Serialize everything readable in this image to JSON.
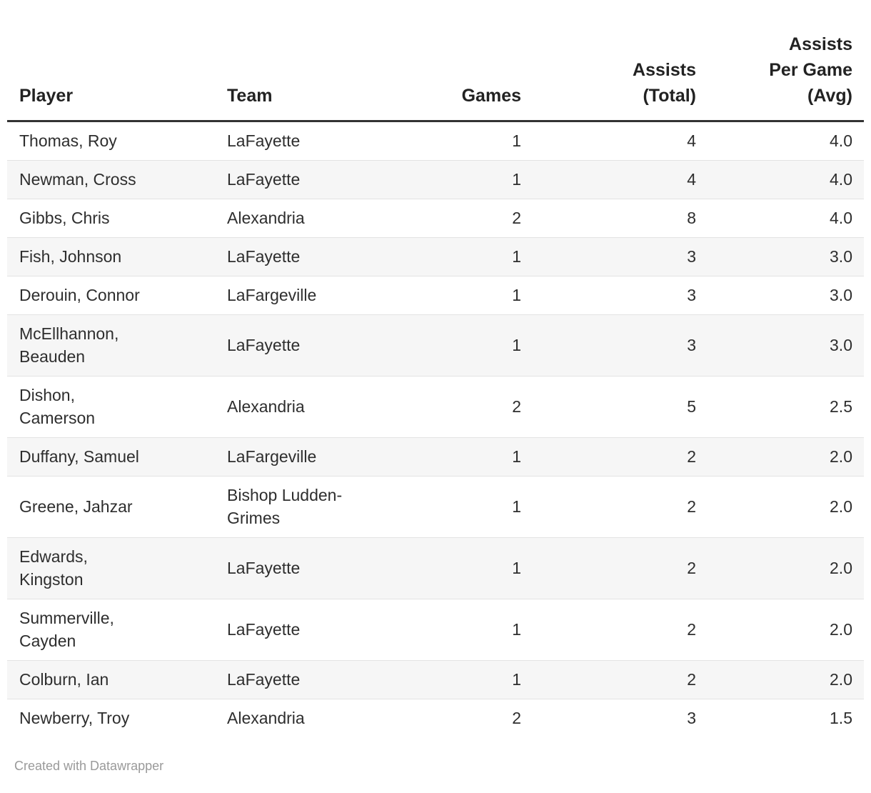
{
  "table": {
    "columns": [
      {
        "key": "player",
        "label": "Player",
        "align": "left"
      },
      {
        "key": "team",
        "label": "Team",
        "align": "left"
      },
      {
        "key": "games",
        "label": "Games",
        "align": "right"
      },
      {
        "key": "assists_total",
        "label": "Assists\n(Total)",
        "align": "right"
      },
      {
        "key": "assists_per_game",
        "label": "Assists\nPer Game\n(Avg)",
        "align": "right"
      }
    ],
    "rows": [
      {
        "player": "Thomas, Roy",
        "team": "LaFayette",
        "games": "1",
        "assists_total": "4",
        "assists_per_game": "4.0"
      },
      {
        "player": "Newman, Cross",
        "team": "LaFayette",
        "games": "1",
        "assists_total": "4",
        "assists_per_game": "4.0"
      },
      {
        "player": "Gibbs, Chris",
        "team": "Alexandria",
        "games": "2",
        "assists_total": "8",
        "assists_per_game": "4.0"
      },
      {
        "player": "Fish, Johnson",
        "team": "LaFayette",
        "games": "1",
        "assists_total": "3",
        "assists_per_game": "3.0"
      },
      {
        "player": "Derouin, Connor",
        "team": "LaFargeville",
        "games": "1",
        "assists_total": "3",
        "assists_per_game": "3.0"
      },
      {
        "player": "McEllhannon,\nBeauden",
        "team": "LaFayette",
        "games": "1",
        "assists_total": "3",
        "assists_per_game": "3.0"
      },
      {
        "player": "Dishon,\nCamerson",
        "team": "Alexandria",
        "games": "2",
        "assists_total": "5",
        "assists_per_game": "2.5"
      },
      {
        "player": "Duffany, Samuel",
        "team": "LaFargeville",
        "games": "1",
        "assists_total": "2",
        "assists_per_game": "2.0"
      },
      {
        "player": "Greene, Jahzar",
        "team": "Bishop Ludden-\nGrimes",
        "games": "1",
        "assists_total": "2",
        "assists_per_game": "2.0"
      },
      {
        "player": "Edwards,\nKingston",
        "team": "LaFayette",
        "games": "1",
        "assists_total": "2",
        "assists_per_game": "2.0"
      },
      {
        "player": "Summerville,\nCayden",
        "team": "LaFayette",
        "games": "1",
        "assists_total": "2",
        "assists_per_game": "2.0"
      },
      {
        "player": "Colburn, Ian",
        "team": "LaFayette",
        "games": "1",
        "assists_total": "2",
        "assists_per_game": "2.0"
      },
      {
        "player": "Newberry, Troy",
        "team": "Alexandria",
        "games": "2",
        "assists_total": "3",
        "assists_per_game": "1.5"
      }
    ]
  },
  "footer": {
    "credit": "Created with Datawrapper"
  },
  "colors": {
    "header_text": "#222222",
    "header_border": "#333333",
    "body_text": "#2e2e2e",
    "row_divider": "#e3e3e3",
    "zebra_stripe": "#f6f6f6",
    "footer_text": "#9a9a9a"
  },
  "chart_data": {
    "type": "table",
    "columns": [
      "Player",
      "Team",
      "Games",
      "Assists (Total)",
      "Assists Per Game (Avg)"
    ],
    "rows": [
      [
        "Thomas, Roy",
        "LaFayette",
        1,
        4,
        4.0
      ],
      [
        "Newman, Cross",
        "LaFayette",
        1,
        4,
        4.0
      ],
      [
        "Gibbs, Chris",
        "Alexandria",
        2,
        8,
        4.0
      ],
      [
        "Fish, Johnson",
        "LaFayette",
        1,
        3,
        3.0
      ],
      [
        "Derouin, Connor",
        "LaFargeville",
        1,
        3,
        3.0
      ],
      [
        "McEllhannon, Beauden",
        "LaFayette",
        1,
        3,
        3.0
      ],
      [
        "Dishon, Camerson",
        "Alexandria",
        2,
        5,
        2.5
      ],
      [
        "Duffany, Samuel",
        "LaFargeville",
        1,
        2,
        2.0
      ],
      [
        "Greene, Jahzar",
        "Bishop Ludden-Grimes",
        1,
        2,
        2.0
      ],
      [
        "Edwards, Kingston",
        "LaFayette",
        1,
        2,
        2.0
      ],
      [
        "Summerville, Cayden",
        "LaFayette",
        1,
        2,
        2.0
      ],
      [
        "Colburn, Ian",
        "LaFayette",
        1,
        2,
        2.0
      ],
      [
        "Newberry, Troy",
        "Alexandria",
        2,
        3,
        1.5
      ]
    ],
    "zebra_striping": "even rows shaded",
    "legend_position": "none",
    "grid": "horizontal row dividers only"
  }
}
